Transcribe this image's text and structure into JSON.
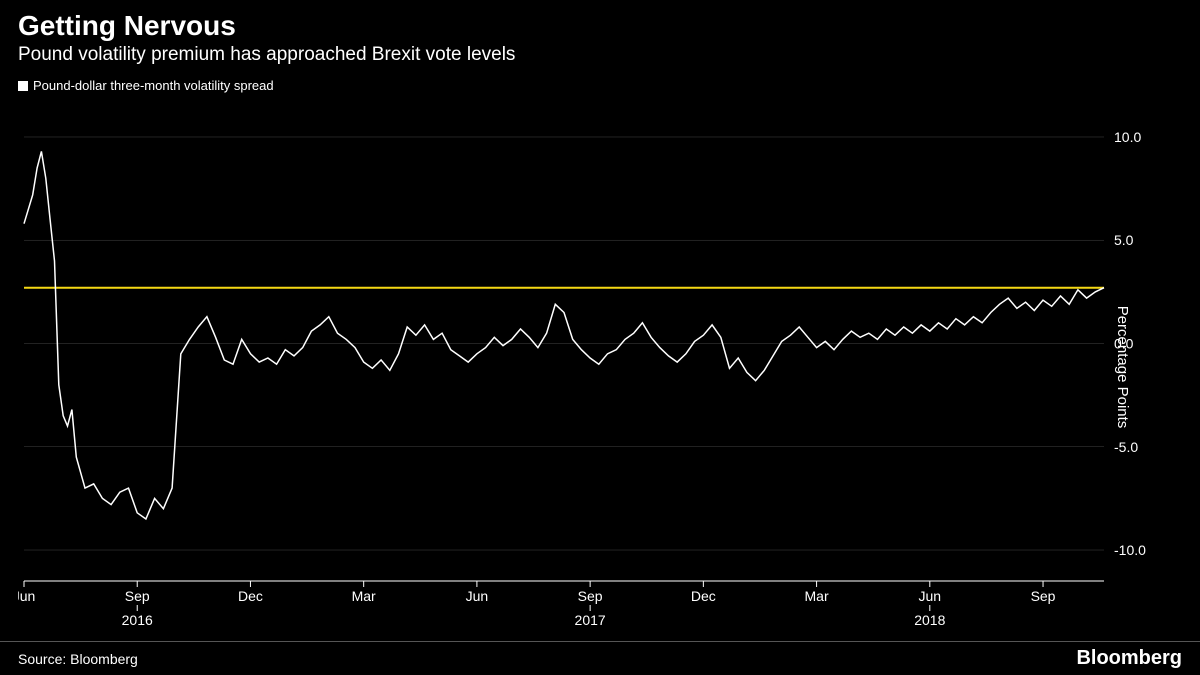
{
  "header": {
    "title": "Getting Nervous",
    "subtitle": "Pound volatility premium has approached Brexit vote levels"
  },
  "legend": {
    "series_label": "Pound-dollar three-month volatility spread"
  },
  "footer": {
    "source": "Source: Bloomberg",
    "brand": "Bloomberg"
  },
  "chart": {
    "type": "line",
    "background_color": "#000000",
    "line_color": "#ffffff",
    "line_width": 1.5,
    "reference_line_color": "#f5d914",
    "reference_line_width": 2,
    "reference_line_y": 2.7,
    "grid_color": "#444444",
    "grid_width": 0.5,
    "axis_color": "#ffffff",
    "tick_font_size": 14,
    "tick_color": "#ffffff",
    "y_axis": {
      "label": "Percentage Points",
      "min": -11.5,
      "max": 11.5,
      "ticks": [
        -10.0,
        -5.0,
        0.0,
        5.0,
        10.0
      ],
      "tick_labels": [
        "-10.0",
        "-5.0",
        "0.0",
        "5.0",
        "10.0"
      ]
    },
    "x_axis": {
      "min": 0,
      "max": 124,
      "month_ticks": [
        {
          "x": 0,
          "label": "Jun"
        },
        {
          "x": 13,
          "label": "Sep"
        },
        {
          "x": 26,
          "label": "Dec"
        },
        {
          "x": 39,
          "label": "Mar"
        },
        {
          "x": 52,
          "label": "Jun"
        },
        {
          "x": 65,
          "label": "Sep"
        },
        {
          "x": 78,
          "label": "Dec"
        },
        {
          "x": 91,
          "label": "Mar"
        },
        {
          "x": 104,
          "label": "Jun"
        },
        {
          "x": 117,
          "label": "Sep"
        }
      ],
      "year_ticks": [
        {
          "x": 13,
          "label": "2016"
        },
        {
          "x": 65,
          "label": "2017"
        },
        {
          "x": 104,
          "label": "2018"
        }
      ]
    },
    "series": [
      {
        "x": 0,
        "y": 5.8
      },
      {
        "x": 1,
        "y": 7.2
      },
      {
        "x": 1.5,
        "y": 8.5
      },
      {
        "x": 2,
        "y": 9.3
      },
      {
        "x": 2.5,
        "y": 8.0
      },
      {
        "x": 3,
        "y": 6.0
      },
      {
        "x": 3.5,
        "y": 4.0
      },
      {
        "x": 4,
        "y": -2.0
      },
      {
        "x": 4.5,
        "y": -3.5
      },
      {
        "x": 5,
        "y": -4.0
      },
      {
        "x": 5.5,
        "y": -3.2
      },
      {
        "x": 6,
        "y": -5.5
      },
      {
        "x": 7,
        "y": -7.0
      },
      {
        "x": 8,
        "y": -6.8
      },
      {
        "x": 9,
        "y": -7.5
      },
      {
        "x": 10,
        "y": -7.8
      },
      {
        "x": 11,
        "y": -7.2
      },
      {
        "x": 12,
        "y": -7.0
      },
      {
        "x": 13,
        "y": -8.2
      },
      {
        "x": 14,
        "y": -8.5
      },
      {
        "x": 15,
        "y": -7.5
      },
      {
        "x": 16,
        "y": -8.0
      },
      {
        "x": 17,
        "y": -7.0
      },
      {
        "x": 18,
        "y": -0.5
      },
      {
        "x": 19,
        "y": 0.2
      },
      {
        "x": 20,
        "y": 0.8
      },
      {
        "x": 21,
        "y": 1.3
      },
      {
        "x": 22,
        "y": 0.3
      },
      {
        "x": 23,
        "y": -0.8
      },
      {
        "x": 24,
        "y": -1.0
      },
      {
        "x": 25,
        "y": 0.2
      },
      {
        "x": 26,
        "y": -0.5
      },
      {
        "x": 27,
        "y": -0.9
      },
      {
        "x": 28,
        "y": -0.7
      },
      {
        "x": 29,
        "y": -1.0
      },
      {
        "x": 30,
        "y": -0.3
      },
      {
        "x": 31,
        "y": -0.6
      },
      {
        "x": 32,
        "y": -0.2
      },
      {
        "x": 33,
        "y": 0.6
      },
      {
        "x": 34,
        "y": 0.9
      },
      {
        "x": 35,
        "y": 1.3
      },
      {
        "x": 36,
        "y": 0.5
      },
      {
        "x": 37,
        "y": 0.2
      },
      {
        "x": 38,
        "y": -0.2
      },
      {
        "x": 39,
        "y": -0.9
      },
      {
        "x": 40,
        "y": -1.2
      },
      {
        "x": 41,
        "y": -0.8
      },
      {
        "x": 42,
        "y": -1.3
      },
      {
        "x": 43,
        "y": -0.5
      },
      {
        "x": 44,
        "y": 0.8
      },
      {
        "x": 45,
        "y": 0.4
      },
      {
        "x": 46,
        "y": 0.9
      },
      {
        "x": 47,
        "y": 0.2
      },
      {
        "x": 48,
        "y": 0.5
      },
      {
        "x": 49,
        "y": -0.3
      },
      {
        "x": 50,
        "y": -0.6
      },
      {
        "x": 51,
        "y": -0.9
      },
      {
        "x": 52,
        "y": -0.5
      },
      {
        "x": 53,
        "y": -0.2
      },
      {
        "x": 54,
        "y": 0.3
      },
      {
        "x": 55,
        "y": -0.1
      },
      {
        "x": 56,
        "y": 0.2
      },
      {
        "x": 57,
        "y": 0.7
      },
      {
        "x": 58,
        "y": 0.3
      },
      {
        "x": 59,
        "y": -0.2
      },
      {
        "x": 60,
        "y": 0.5
      },
      {
        "x": 61,
        "y": 1.9
      },
      {
        "x": 62,
        "y": 1.5
      },
      {
        "x": 63,
        "y": 0.2
      },
      {
        "x": 64,
        "y": -0.3
      },
      {
        "x": 65,
        "y": -0.7
      },
      {
        "x": 66,
        "y": -1.0
      },
      {
        "x": 67,
        "y": -0.5
      },
      {
        "x": 68,
        "y": -0.3
      },
      {
        "x": 69,
        "y": 0.2
      },
      {
        "x": 70,
        "y": 0.5
      },
      {
        "x": 71,
        "y": 1.0
      },
      {
        "x": 72,
        "y": 0.3
      },
      {
        "x": 73,
        "y": -0.2
      },
      {
        "x": 74,
        "y": -0.6
      },
      {
        "x": 75,
        "y": -0.9
      },
      {
        "x": 76,
        "y": -0.5
      },
      {
        "x": 77,
        "y": 0.1
      },
      {
        "x": 78,
        "y": 0.4
      },
      {
        "x": 79,
        "y": 0.9
      },
      {
        "x": 80,
        "y": 0.3
      },
      {
        "x": 81,
        "y": -1.2
      },
      {
        "x": 82,
        "y": -0.7
      },
      {
        "x": 83,
        "y": -1.4
      },
      {
        "x": 84,
        "y": -1.8
      },
      {
        "x": 85,
        "y": -1.3
      },
      {
        "x": 86,
        "y": -0.6
      },
      {
        "x": 87,
        "y": 0.1
      },
      {
        "x": 88,
        "y": 0.4
      },
      {
        "x": 89,
        "y": 0.8
      },
      {
        "x": 90,
        "y": 0.3
      },
      {
        "x": 91,
        "y": -0.2
      },
      {
        "x": 92,
        "y": 0.1
      },
      {
        "x": 93,
        "y": -0.3
      },
      {
        "x": 94,
        "y": 0.2
      },
      {
        "x": 95,
        "y": 0.6
      },
      {
        "x": 96,
        "y": 0.3
      },
      {
        "x": 97,
        "y": 0.5
      },
      {
        "x": 98,
        "y": 0.2
      },
      {
        "x": 99,
        "y": 0.7
      },
      {
        "x": 100,
        "y": 0.4
      },
      {
        "x": 101,
        "y": 0.8
      },
      {
        "x": 102,
        "y": 0.5
      },
      {
        "x": 103,
        "y": 0.9
      },
      {
        "x": 104,
        "y": 0.6
      },
      {
        "x": 105,
        "y": 1.0
      },
      {
        "x": 106,
        "y": 0.7
      },
      {
        "x": 107,
        "y": 1.2
      },
      {
        "x": 108,
        "y": 0.9
      },
      {
        "x": 109,
        "y": 1.3
      },
      {
        "x": 110,
        "y": 1.0
      },
      {
        "x": 111,
        "y": 1.5
      },
      {
        "x": 112,
        "y": 1.9
      },
      {
        "x": 113,
        "y": 2.2
      },
      {
        "x": 114,
        "y": 1.7
      },
      {
        "x": 115,
        "y": 2.0
      },
      {
        "x": 116,
        "y": 1.6
      },
      {
        "x": 117,
        "y": 2.1
      },
      {
        "x": 118,
        "y": 1.8
      },
      {
        "x": 119,
        "y": 2.3
      },
      {
        "x": 120,
        "y": 1.9
      },
      {
        "x": 121,
        "y": 2.6
      },
      {
        "x": 122,
        "y": 2.2
      },
      {
        "x": 123,
        "y": 2.5
      },
      {
        "x": 124,
        "y": 2.7
      }
    ]
  }
}
